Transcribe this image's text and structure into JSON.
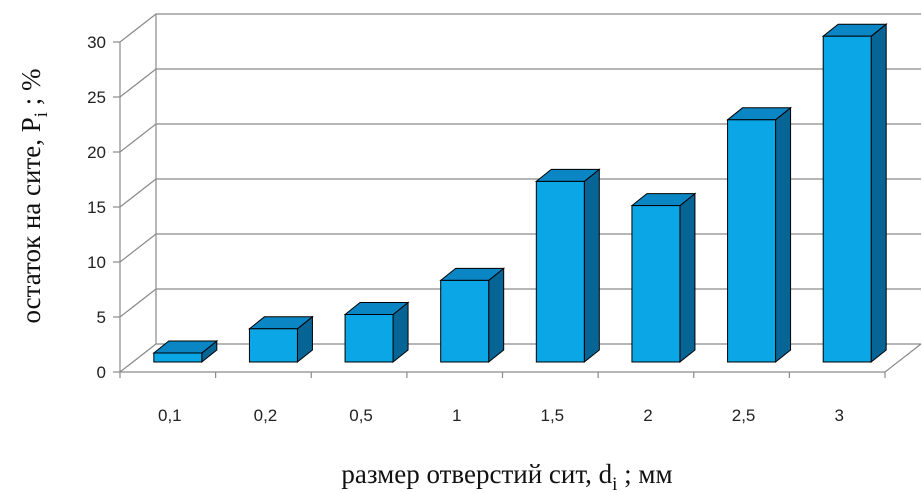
{
  "chart_data": {
    "type": "bar",
    "style": "3d",
    "categories": [
      "0,1",
      "0,2",
      "0,5",
      "1",
      "1,5",
      "2",
      "2,5",
      "3"
    ],
    "values": [
      1,
      3.2,
      4.5,
      7.6,
      16.6,
      14.4,
      22.2,
      29.8
    ],
    "yticks": [
      "0",
      "5",
      "10",
      "15",
      "20",
      "25",
      "30"
    ],
    "ylim": [
      0,
      30
    ],
    "xlabel": {
      "main": "размер отверстий сит, d",
      "sub": "i",
      "tail": " ; мм"
    },
    "ylabel": {
      "main": "остаток на сите, P",
      "sub": "i",
      "tail": " ; %"
    },
    "grid": true,
    "colors": {
      "front": "#0aa6e6",
      "top": "#0b86c4",
      "side": "#066594",
      "outline": "#000000",
      "grid": "#8a8a8a"
    }
  }
}
